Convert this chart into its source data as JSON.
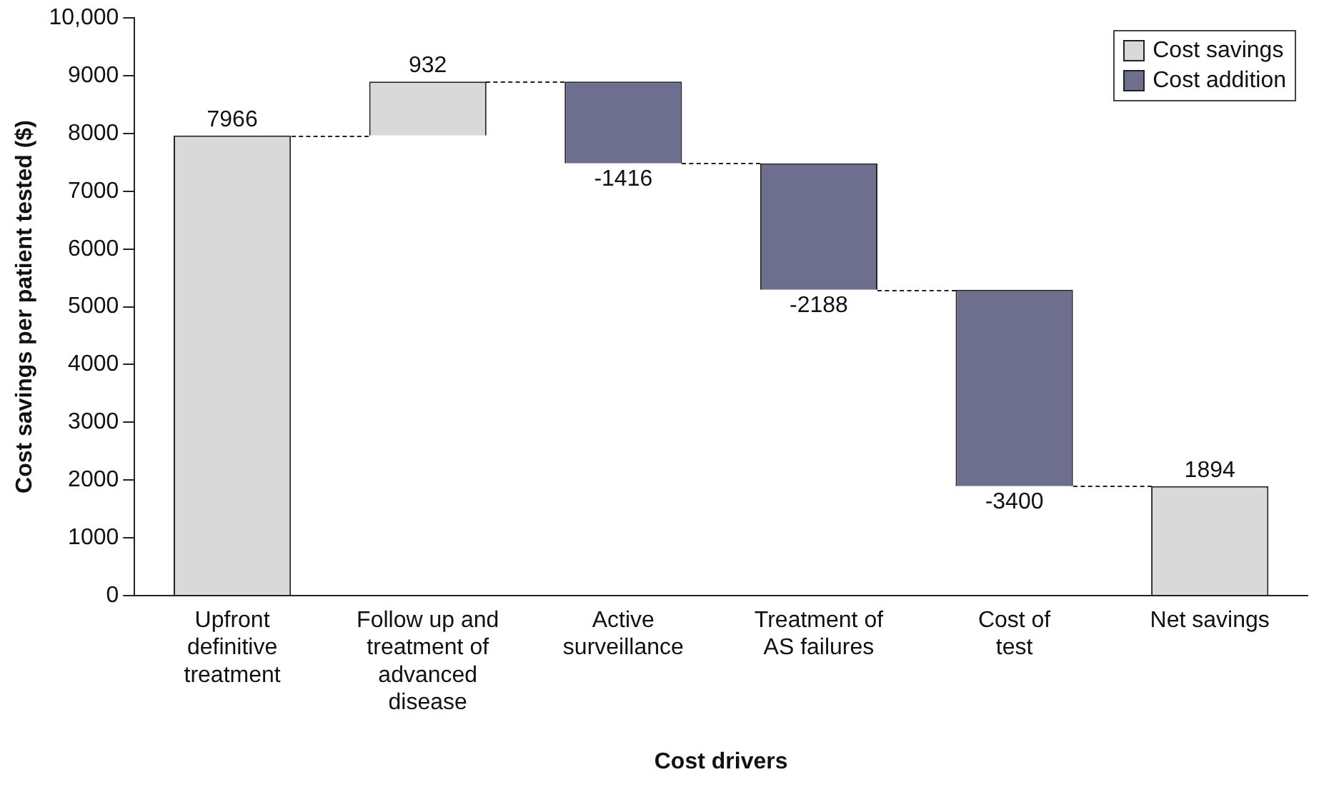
{
  "chart_data": {
    "type": "bar",
    "xlabel": "Cost drivers",
    "ylabel": "Cost savings per patient tested ($)",
    "categories": [
      "Upfront\ndefinitive\ntreatment",
      "Follow up and\ntreatment of\nadvanced\ndisease",
      "Active\nsurveillance",
      "Treatment of\nAS failures",
      "Cost of\ntest",
      "Net savings"
    ],
    "series": [
      {
        "name": "Cost savings",
        "color": "#d9d9d9",
        "values": [
          7966,
          932,
          null,
          null,
          null,
          1894
        ],
        "base": [
          0,
          7966,
          null,
          null,
          null,
          0
        ]
      },
      {
        "name": "Cost addition",
        "color": "#6e6e8e",
        "values": [
          null,
          null,
          -1416,
          -2188,
          -3400,
          null
        ],
        "base": [
          null,
          null,
          8898,
          7482,
          5294,
          null
        ]
      }
    ],
    "ylim": [
      0,
      10000
    ],
    "yticks": [
      0,
      1000,
      2000,
      3000,
      4000,
      5000,
      6000,
      7000,
      8000,
      9000,
      {
        "value": 10000,
        "label": "10,000"
      }
    ],
    "grid": false,
    "legend": "top right",
    "data_labels": true
  }
}
